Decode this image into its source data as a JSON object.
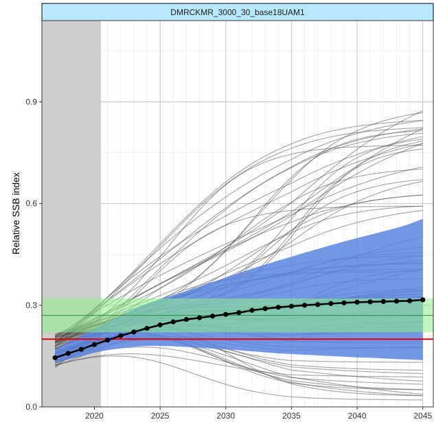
{
  "chart_data": {
    "type": "line",
    "title": "DMRCKMR_3000_30_base18UAM1",
    "xlabel": "",
    "ylabel": "Relative SSB index",
    "xlim": [
      2016.0,
      2045.8
    ],
    "ylim": [
      0.0,
      1.14
    ],
    "x_ticks": [
      2020,
      2025,
      2030,
      2035,
      2040,
      2045
    ],
    "x_tick_labels": [
      "2020",
      "2025",
      "2030",
      "2035",
      "2040",
      "2045"
    ],
    "y_ticks": [
      0.0,
      0.3,
      0.6,
      0.9
    ],
    "y_tick_labels": [
      "0.0",
      "0.3",
      "0.6",
      "0.9"
    ],
    "grid": true,
    "historical_period": [
      2016.0,
      2020.5
    ],
    "target_band": [
      0.22,
      0.32
    ],
    "target_line": 0.27,
    "limit_line": 0.2,
    "median_x": [
      2017,
      2018,
      2019,
      2020,
      2021,
      2022,
      2023,
      2024,
      2025,
      2026,
      2027,
      2028,
      2029,
      2030,
      2031,
      2032,
      2033,
      2034,
      2035,
      2036,
      2037,
      2038,
      2039,
      2040,
      2041,
      2042,
      2043,
      2044,
      2045
    ],
    "median_y": [
      0.145,
      0.158,
      0.17,
      0.184,
      0.197,
      0.21,
      0.221,
      0.232,
      0.242,
      0.251,
      0.258,
      0.263,
      0.268,
      0.273,
      0.278,
      0.285,
      0.29,
      0.294,
      0.297,
      0.3,
      0.302,
      0.305,
      0.307,
      0.309,
      0.31,
      0.311,
      0.312,
      0.313,
      0.316
    ],
    "ribbon_lower": [
      0.13,
      0.14,
      0.15,
      0.16,
      0.168,
      0.174,
      0.178,
      0.18,
      0.18,
      0.179,
      0.177,
      0.175,
      0.172,
      0.17,
      0.167,
      0.164,
      0.161,
      0.158,
      0.156,
      0.154,
      0.152,
      0.15,
      0.148,
      0.146,
      0.145,
      0.143,
      0.141,
      0.14,
      0.138
    ],
    "ribbon_upper": [
      0.17,
      0.19,
      0.21,
      0.23,
      0.25,
      0.27,
      0.29,
      0.305,
      0.318,
      0.33,
      0.342,
      0.355,
      0.368,
      0.382,
      0.395,
      0.408,
      0.42,
      0.432,
      0.443,
      0.455,
      0.466,
      0.477,
      0.488,
      0.498,
      0.508,
      0.518,
      0.528,
      0.54,
      0.555
    ],
    "colors": {
      "ribbon": "#5b85e0",
      "target_band": "#8ef08a",
      "target_line": "#2e8b2e",
      "limit_line": "#e00000",
      "median": "#000000",
      "trajectory": "#555555",
      "historical": "#cccccc",
      "strip": "#b8e8ff"
    }
  }
}
